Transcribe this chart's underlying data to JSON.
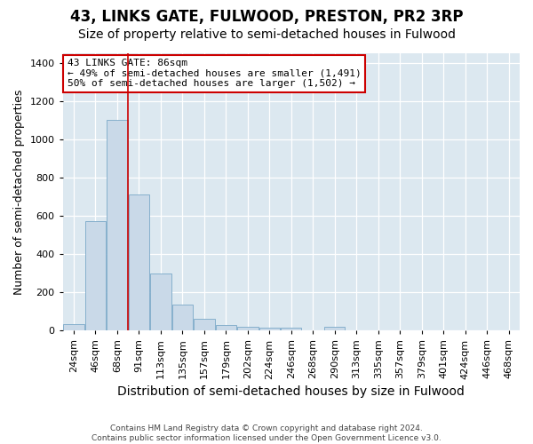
{
  "title": "43, LINKS GATE, FULWOOD, PRESTON, PR2 3RP",
  "subtitle": "Size of property relative to semi-detached houses in Fulwood",
  "xlabel": "Distribution of semi-detached houses by size in Fulwood",
  "ylabel": "Number of semi-detached properties",
  "footnote": "Contains HM Land Registry data © Crown copyright and database right 2024.\nContains public sector information licensed under the Open Government Licence v3.0.",
  "categories": [
    "24sqm",
    "46sqm",
    "68sqm",
    "91sqm",
    "113sqm",
    "135sqm",
    "157sqm",
    "179sqm",
    "202sqm",
    "224sqm",
    "246sqm",
    "268sqm",
    "290sqm",
    "313sqm",
    "335sqm",
    "357sqm",
    "379sqm",
    "401sqm",
    "424sqm",
    "446sqm",
    "468sqm"
  ],
  "values": [
    35,
    575,
    1100,
    710,
    300,
    135,
    60,
    30,
    20,
    15,
    15,
    0,
    20,
    0,
    0,
    0,
    0,
    0,
    0,
    0,
    0
  ],
  "bar_color": "#c9d9e8",
  "bar_edge_color": "#7aa8c8",
  "vline_bar_index": 2,
  "vline_color": "#cc0000",
  "annotation_line1": "43 LINKS GATE: 86sqm",
  "annotation_line2": "← 49% of semi-detached houses are smaller (1,491)",
  "annotation_line3": "50% of semi-detached houses are larger (1,502) →",
  "annotation_box_facecolor": "#ffffff",
  "annotation_box_edgecolor": "#cc0000",
  "ylim": [
    0,
    1450
  ],
  "yticks": [
    0,
    200,
    400,
    600,
    800,
    1000,
    1200,
    1400
  ],
  "plot_bg_color": "#dce8f0",
  "title_fontsize": 12,
  "subtitle_fontsize": 10,
  "xlabel_fontsize": 10,
  "ylabel_fontsize": 9,
  "tick_fontsize": 8,
  "annot_fontsize": 8,
  "footnote_fontsize": 6.5
}
